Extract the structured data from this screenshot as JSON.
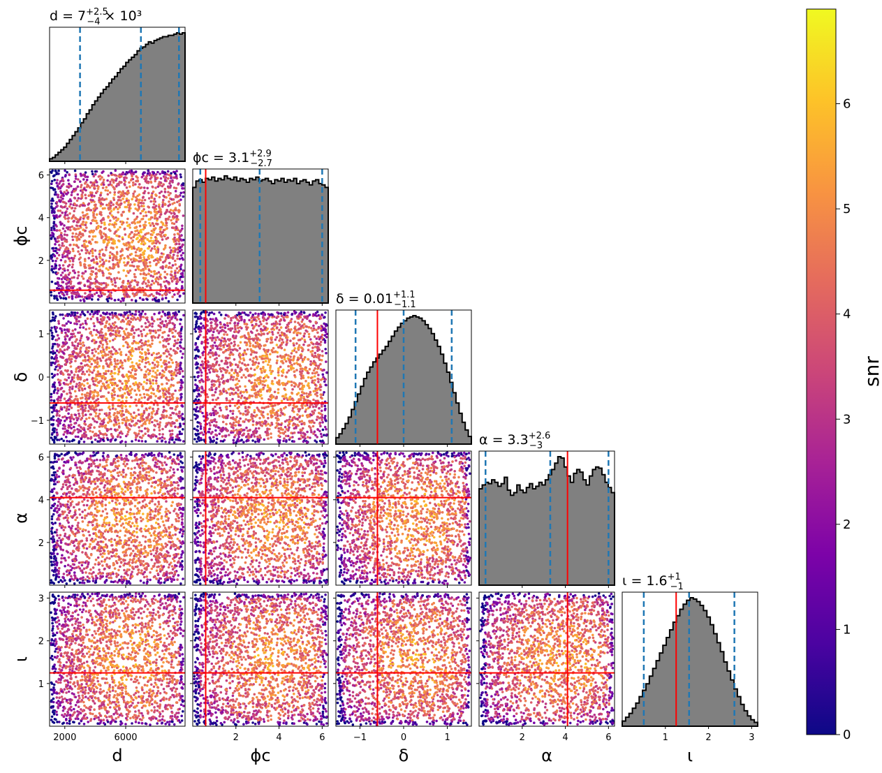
{
  "chart_data": {
    "type": "scatter",
    "layout": "corner-plot",
    "colormap": "plasma",
    "colorbar": {
      "label": "snr",
      "range": [
        0,
        6.9
      ],
      "ticks": [
        0,
        1,
        2,
        3,
        4,
        5,
        6
      ]
    },
    "histogram_style": {
      "fill": "#808080",
      "edge": "#000000",
      "quantile_lines": "#1f77b4",
      "truth_line": "#ff0000"
    },
    "parameters": [
      {
        "id": "d",
        "label": "d",
        "range": [
          1000,
          9900
        ],
        "ticks": [
          2000,
          6000
        ],
        "tick_labels": [
          "2000",
          "6000"
        ],
        "title_prefix": "d = 7",
        "title_sup": "+2.5",
        "title_sub": "−4",
        "title_suffix": " × 10³",
        "quantiles": [
          3000,
          7000,
          9500
        ],
        "truth": null
      },
      {
        "id": "phi_c",
        "label": "ϕc",
        "range": [
          0.0,
          6.28
        ],
        "ticks": [
          2,
          4,
          6
        ],
        "tick_labels": [
          "2",
          "4",
          "6"
        ],
        "title_prefix": "ϕc = 3.1",
        "title_sup": "+2.9",
        "title_sub": "−2.7",
        "quantiles": [
          0.35,
          3.1,
          6.0
        ],
        "truth": 0.6
      },
      {
        "id": "delta",
        "label": "δ",
        "range": [
          -1.55,
          1.55
        ],
        "ticks": [
          -1,
          0,
          1
        ],
        "tick_labels": [
          "−1",
          "0",
          "1"
        ],
        "title_prefix": "δ = 0.01",
        "title_sup": "+1.1",
        "title_sub": "−1.1",
        "quantiles": [
          -1.1,
          0.0,
          1.1
        ],
        "truth": -0.6
      },
      {
        "id": "alpha",
        "label": "α",
        "range": [
          0.0,
          6.28
        ],
        "ticks": [
          2,
          4,
          6
        ],
        "tick_labels": [
          "2",
          "4",
          "6"
        ],
        "title_prefix": "α = 3.3",
        "title_sup": "+2.6",
        "title_sub": "−3",
        "quantiles": [
          0.3,
          3.3,
          6.0
        ],
        "truth": 4.1
      },
      {
        "id": "iota",
        "label": "ι",
        "range": [
          0.0,
          3.14
        ],
        "ticks": [
          1,
          2,
          3
        ],
        "tick_labels": [
          "1",
          "2",
          "3"
        ],
        "title_prefix": "ι = 1.6",
        "title_sup": "+1",
        "title_sub": "−1",
        "quantiles": [
          0.5,
          1.55,
          2.6
        ],
        "truth": 1.25
      }
    ],
    "histograms": {
      "d": [
        0.02,
        0.03,
        0.05,
        0.07,
        0.09,
        0.11,
        0.14,
        0.17,
        0.2,
        0.23,
        0.26,
        0.3,
        0.33,
        0.37,
        0.4,
        0.44,
        0.47,
        0.5,
        0.53,
        0.56,
        0.58,
        0.61,
        0.64,
        0.66,
        0.69,
        0.72,
        0.74,
        0.77,
        0.79,
        0.81,
        0.83,
        0.86,
        0.88,
        0.89,
        0.91,
        0.93,
        0.92,
        0.94,
        0.95,
        0.96,
        0.97,
        0.97,
        0.98,
        0.98,
        0.99,
        1.0,
        0.99,
        1.0
      ],
      "phi_c": [
        0.9,
        0.95,
        0.96,
        0.94,
        0.97,
        0.96,
        0.98,
        0.95,
        0.97,
        0.96,
        0.99,
        0.97,
        0.96,
        0.98,
        0.95,
        0.97,
        0.96,
        0.94,
        0.97,
        0.96,
        0.98,
        0.95,
        0.96,
        0.97,
        0.95,
        0.93,
        0.96,
        0.95,
        0.97,
        0.94,
        0.96,
        0.95,
        0.97,
        0.93,
        0.95,
        0.96,
        0.94,
        0.92,
        0.95,
        0.96,
        0.93,
        0.92,
        0.9
      ],
      "delta": [
        0.05,
        0.08,
        0.12,
        0.16,
        0.21,
        0.27,
        0.33,
        0.39,
        0.45,
        0.51,
        0.56,
        0.6,
        0.64,
        0.67,
        0.7,
        0.73,
        0.76,
        0.8,
        0.84,
        0.88,
        0.91,
        0.94,
        0.96,
        0.98,
        0.99,
        1.0,
        0.99,
        0.98,
        0.96,
        0.93,
        0.9,
        0.86,
        0.81,
        0.76,
        0.7,
        0.63,
        0.56,
        0.48,
        0.4,
        0.32,
        0.24,
        0.17,
        0.11,
        0.06
      ],
      "alpha": [
        0.75,
        0.78,
        0.8,
        0.79,
        0.82,
        0.8,
        0.77,
        0.79,
        0.84,
        0.74,
        0.7,
        0.72,
        0.78,
        0.74,
        0.72,
        0.76,
        0.79,
        0.75,
        0.77,
        0.8,
        0.78,
        0.82,
        0.86,
        0.9,
        0.95,
        1.0,
        0.99,
        0.92,
        0.85,
        0.8,
        0.87,
        0.9,
        0.88,
        0.82,
        0.78,
        0.85,
        0.9,
        0.92,
        0.91,
        0.86,
        0.8,
        0.76,
        0.72
      ],
      "iota": [
        0.04,
        0.07,
        0.1,
        0.14,
        0.18,
        0.23,
        0.28,
        0.33,
        0.39,
        0.45,
        0.51,
        0.57,
        0.63,
        0.69,
        0.75,
        0.81,
        0.86,
        0.91,
        0.95,
        0.98,
        1.0,
        0.99,
        0.97,
        0.94,
        0.9,
        0.85,
        0.79,
        0.72,
        0.65,
        0.58,
        0.5,
        0.43,
        0.36,
        0.29,
        0.23,
        0.17,
        0.12,
        0.08,
        0.05,
        0.03
      ]
    },
    "scatter_points_per_panel": 2000
  }
}
